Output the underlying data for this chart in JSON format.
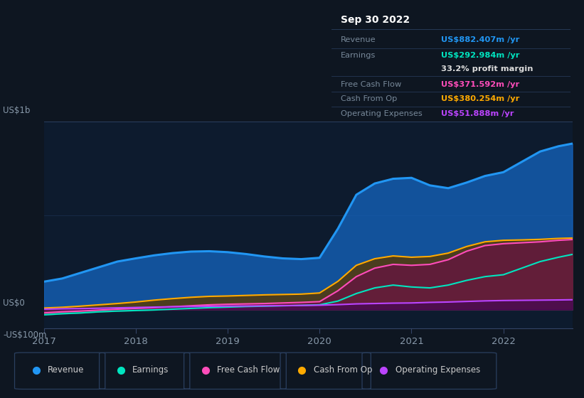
{
  "background_color": "#0e1621",
  "plot_bg_color": "#0d1b2e",
  "x_years": [
    2017.0,
    2017.2,
    2017.4,
    2017.6,
    2017.8,
    2018.0,
    2018.2,
    2018.4,
    2018.6,
    2018.8,
    2019.0,
    2019.2,
    2019.4,
    2019.6,
    2019.8,
    2020.0,
    2020.2,
    2020.4,
    2020.6,
    2020.8,
    2021.0,
    2021.2,
    2021.4,
    2021.6,
    2021.8,
    2022.0,
    2022.2,
    2022.4,
    2022.6,
    2022.75
  ],
  "revenue": [
    148,
    165,
    195,
    225,
    255,
    272,
    288,
    300,
    308,
    310,
    305,
    295,
    282,
    272,
    268,
    275,
    430,
    610,
    670,
    695,
    700,
    660,
    645,
    675,
    710,
    730,
    785,
    840,
    868,
    882
  ],
  "earnings": [
    -28,
    -22,
    -18,
    -12,
    -8,
    -5,
    -2,
    2,
    6,
    10,
    13,
    16,
    18,
    20,
    22,
    25,
    45,
    85,
    115,
    130,
    120,
    115,
    130,
    155,
    175,
    185,
    220,
    255,
    278,
    293
  ],
  "free_cash_flow": [
    -18,
    -12,
    -8,
    -3,
    2,
    6,
    10,
    15,
    20,
    25,
    28,
    30,
    32,
    35,
    38,
    42,
    100,
    175,
    220,
    240,
    235,
    240,
    265,
    310,
    340,
    350,
    355,
    360,
    368,
    372
  ],
  "cash_from_op": [
    8,
    12,
    18,
    25,
    32,
    40,
    50,
    58,
    65,
    70,
    72,
    75,
    78,
    80,
    82,
    88,
    150,
    235,
    270,
    285,
    278,
    282,
    300,
    335,
    360,
    368,
    370,
    373,
    378,
    380
  ],
  "operating_expenses": [
    2,
    4,
    5,
    7,
    9,
    11,
    13,
    15,
    16,
    17,
    18,
    19,
    20,
    21,
    22,
    23,
    26,
    30,
    32,
    34,
    35,
    38,
    40,
    43,
    46,
    48,
    49,
    50,
    51,
    52
  ],
  "revenue_color": "#2196f3",
  "earnings_color": "#00e5c0",
  "free_cash_flow_color": "#ff4dba",
  "cash_from_op_color": "#ffaa00",
  "op_expenses_color": "#bb44ff",
  "info_title": "Sep 30 2022",
  "info_revenue_label": "Revenue",
  "info_revenue_value": "US$882.407m /yr",
  "info_earnings_label": "Earnings",
  "info_earnings_value": "US$292.984m /yr",
  "info_margin_value": "33.2% profit margin",
  "info_fcf_label": "Free Cash Flow",
  "info_fcf_value": "US$371.592m /yr",
  "info_cop_label": "Cash From Op",
  "info_cop_value": "US$380.254m /yr",
  "info_opex_label": "Operating Expenses",
  "info_opex_value": "US$51.888m /yr",
  "legend_entries": [
    "Revenue",
    "Earnings",
    "Free Cash Flow",
    "Cash From Op",
    "Operating Expenses"
  ],
  "legend_colors": [
    "#2196f3",
    "#00e5c0",
    "#ff4dba",
    "#ffaa00",
    "#bb44ff"
  ]
}
